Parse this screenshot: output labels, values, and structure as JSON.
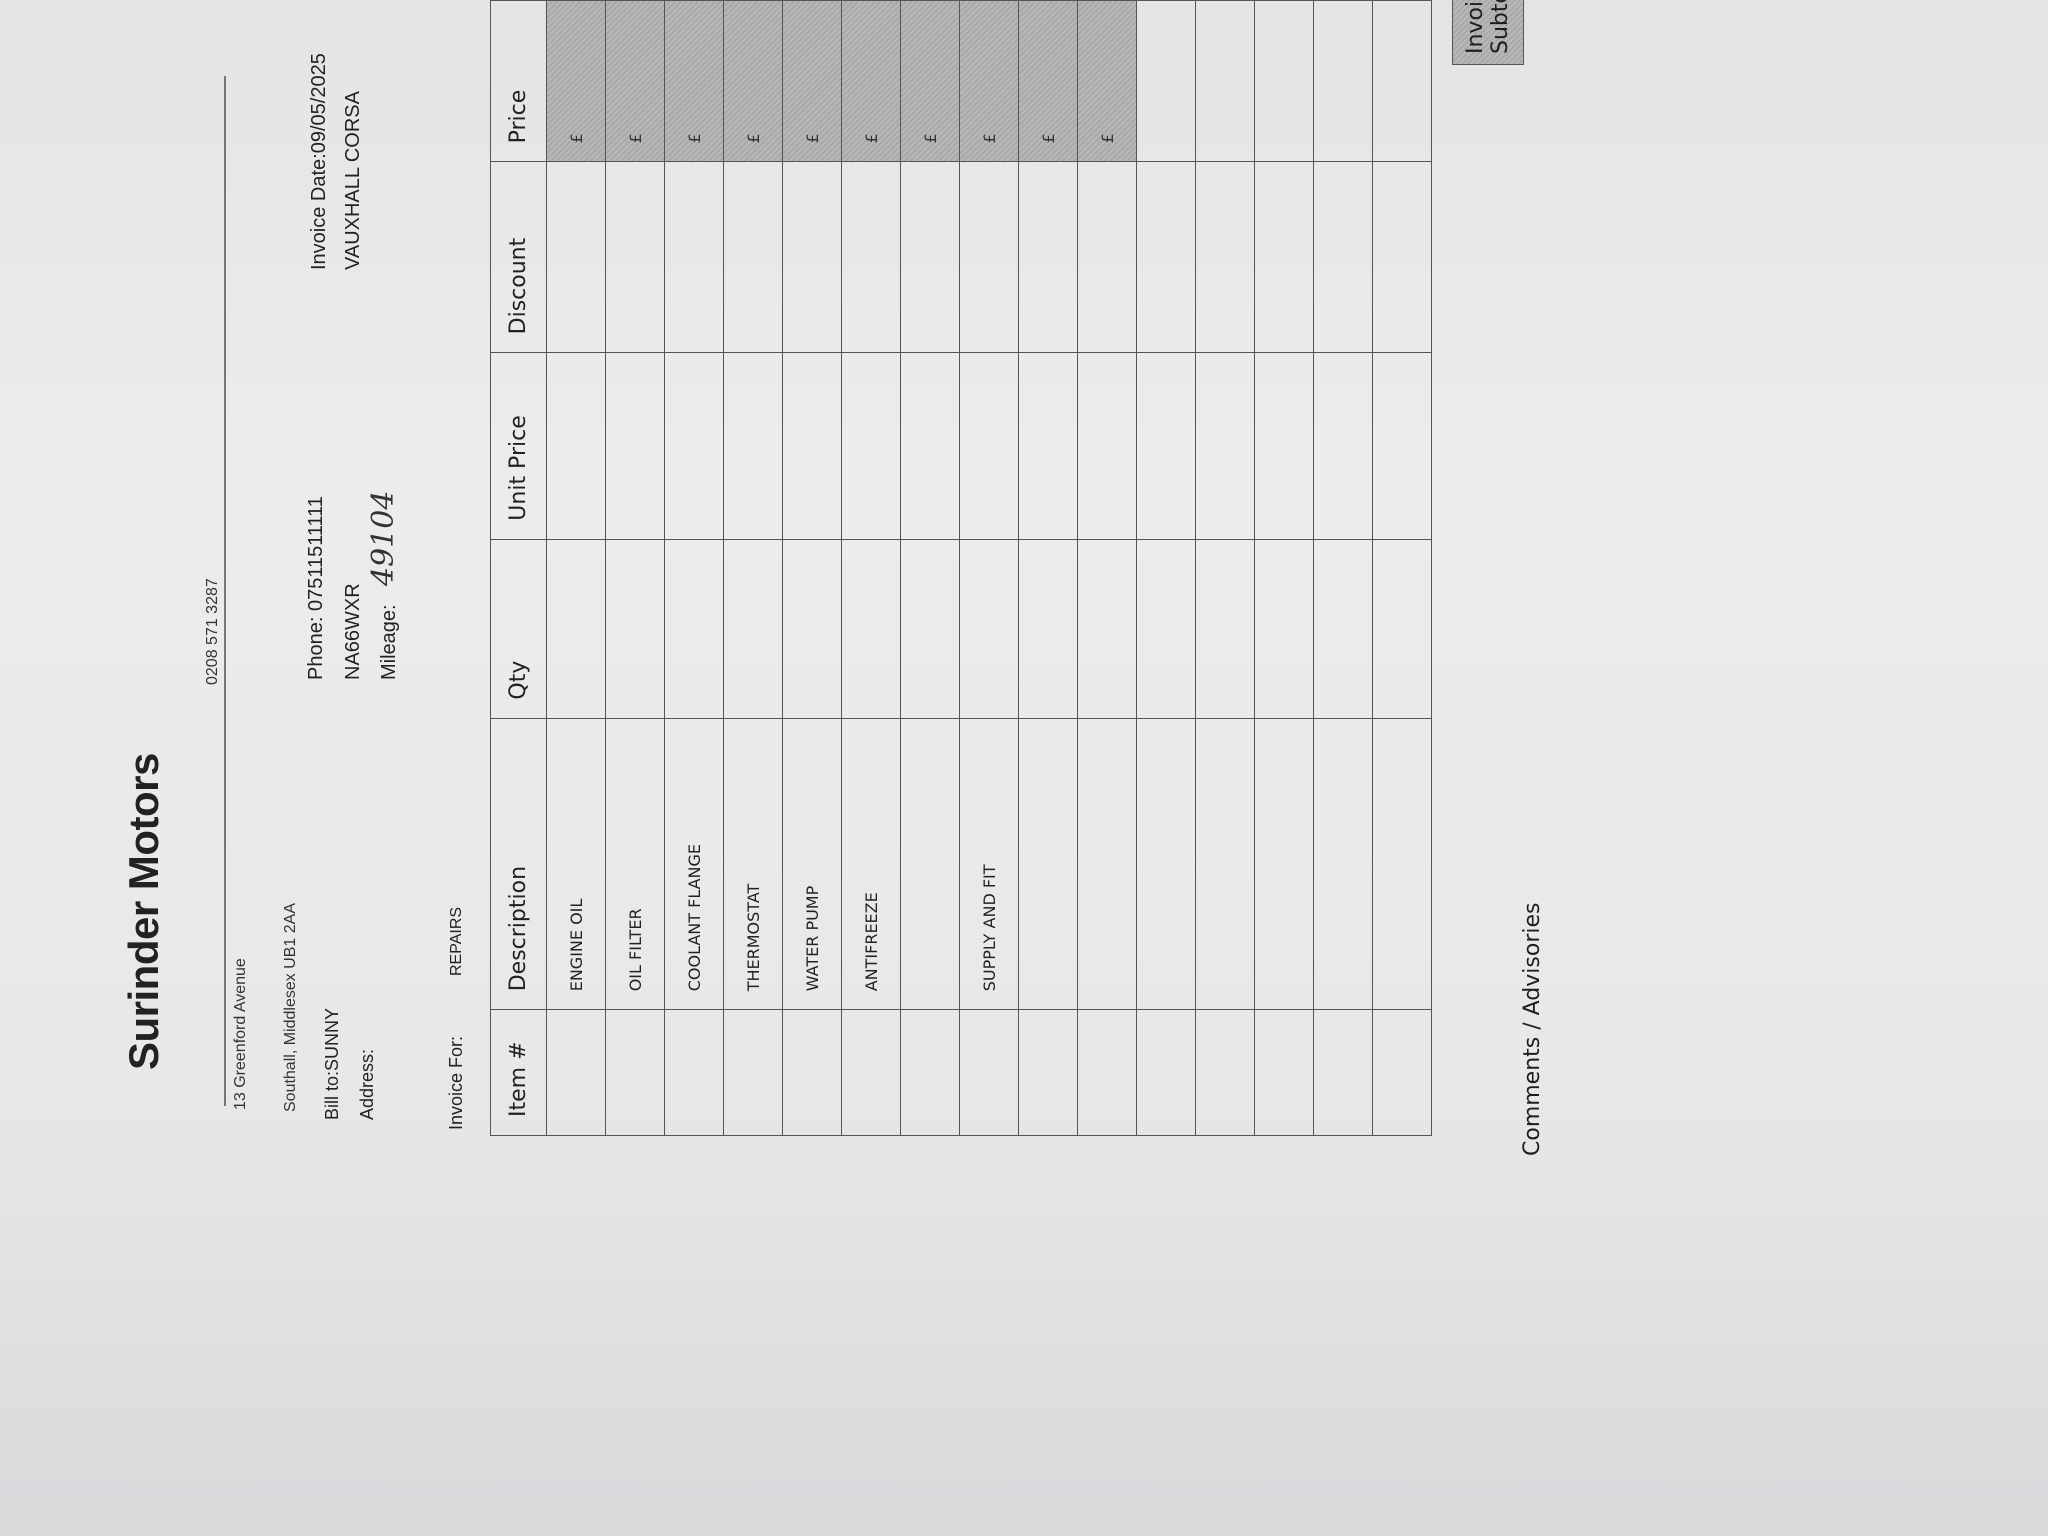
{
  "company": {
    "name": "Surinder Motors",
    "address_line1": "13 Greenford Avenue",
    "address_line2": "Southall, Middlesex UB1 2AA",
    "phone": "0208 571 3287"
  },
  "customer": {
    "bill_to": "Bill to:SUNNY",
    "address_label": "Address:",
    "phone": "Phone: 07511511111",
    "registration": "NA66WXR",
    "mileage_label": "Mileage:",
    "mileage_value": "49104"
  },
  "invoice": {
    "date": "Invoice Date:09/05/2025",
    "vehicle": "VAUXHALL CORSA",
    "for_label": "Invoice For:",
    "for_value": "REPAIRS"
  },
  "table": {
    "headers": [
      "Item #",
      "Description",
      "Qty",
      "Unit Price",
      "Discount",
      "Price"
    ],
    "currency_symbol": "£",
    "items": [
      "ENGINE OIL",
      "OIL FILTER",
      "COOLANT FLANGE",
      "THERMOSTAT",
      "WATER PUMP",
      "ANTIFREEZE",
      "",
      "SUPPLY AND FIT",
      "",
      "",
      "",
      "",
      "",
      "",
      ""
    ]
  },
  "footer": {
    "subtotal_label": "Invoice Subtotal",
    "comments_label": "Comments / Advisories"
  }
}
